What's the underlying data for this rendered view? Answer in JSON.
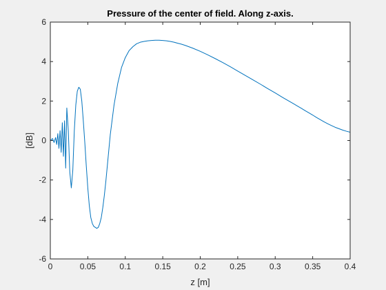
{
  "chart_data": {
    "type": "line",
    "title": "Pressure of the center of field. Along z-axis.",
    "xlabel": "z [m]",
    "ylabel": "[dB]",
    "xlim": [
      0,
      0.4
    ],
    "ylim": [
      -6,
      6
    ],
    "xticks": [
      0,
      0.05,
      0.1,
      0.15,
      0.2,
      0.25,
      0.3,
      0.35,
      0.4
    ],
    "yticks": [
      -6,
      -4,
      -2,
      0,
      2,
      4,
      6
    ],
    "xtick_labels": [
      "0",
      "0.05",
      "0.1",
      "0.15",
      "0.2",
      "0.25",
      "0.3",
      "0.35",
      "0.4"
    ],
    "ytick_labels": [
      "-6",
      "-4",
      "-2",
      "0",
      "2",
      "4",
      "6"
    ],
    "grid": false,
    "line_color": "#0072BD",
    "series": [
      {
        "x": [
          0.0,
          0.003,
          0.005,
          0.007,
          0.0085,
          0.01,
          0.0115,
          0.013,
          0.0145,
          0.016,
          0.0175,
          0.019,
          0.0205,
          0.022,
          0.024,
          0.026,
          0.028,
          0.03,
          0.032,
          0.034,
          0.036,
          0.038,
          0.04,
          0.042,
          0.044,
          0.046,
          0.048,
          0.05,
          0.052,
          0.054,
          0.056,
          0.058,
          0.06,
          0.062,
          0.064,
          0.066,
          0.068,
          0.07,
          0.072,
          0.074,
          0.076,
          0.078,
          0.08,
          0.085,
          0.09,
          0.095,
          0.1,
          0.105,
          0.11,
          0.115,
          0.12,
          0.125,
          0.13,
          0.135,
          0.14,
          0.145,
          0.15,
          0.155,
          0.16,
          0.165,
          0.17,
          0.175,
          0.18,
          0.19,
          0.2,
          0.21,
          0.22,
          0.23,
          0.24,
          0.25,
          0.26,
          0.27,
          0.28,
          0.29,
          0.3,
          0.31,
          0.32,
          0.325,
          0.33,
          0.335,
          0.34,
          0.345,
          0.35,
          0.355,
          0.36,
          0.365,
          0.37,
          0.375,
          0.38,
          0.385,
          0.39,
          0.395,
          0.4
        ],
        "y": [
          0.0,
          0.1,
          -0.1,
          0.15,
          -0.2,
          0.35,
          -0.4,
          0.5,
          -0.6,
          0.9,
          -0.8,
          1.0,
          -1.4,
          1.65,
          0.5,
          -1.6,
          -2.4,
          -1.5,
          0.5,
          1.8,
          2.5,
          2.7,
          2.6,
          2.0,
          1.0,
          -0.1,
          -1.3,
          -2.4,
          -3.3,
          -3.9,
          -4.2,
          -4.35,
          -4.4,
          -4.45,
          -4.4,
          -4.2,
          -3.9,
          -3.4,
          -2.8,
          -2.1,
          -1.3,
          -0.5,
          0.3,
          1.8,
          2.9,
          3.7,
          4.2,
          4.55,
          4.75,
          4.9,
          4.98,
          5.02,
          5.05,
          5.07,
          5.08,
          5.08,
          5.07,
          5.05,
          5.02,
          4.98,
          4.93,
          4.88,
          4.82,
          4.68,
          4.52,
          4.34,
          4.15,
          3.95,
          3.74,
          3.52,
          3.3,
          3.08,
          2.86,
          2.63,
          2.41,
          2.18,
          1.96,
          1.85,
          1.74,
          1.63,
          1.51,
          1.4,
          1.29,
          1.17,
          1.06,
          0.95,
          0.85,
          0.76,
          0.67,
          0.6,
          0.53,
          0.47,
          0.42
        ]
      }
    ]
  }
}
